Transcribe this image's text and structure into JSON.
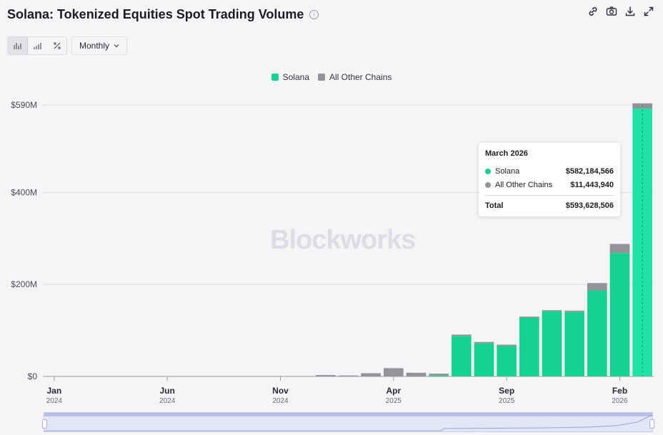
{
  "title": "Solana: Tokenized Equities Spot Trading Volume",
  "toolbar": {
    "period_label": "Monthly",
    "icons": [
      "link-icon",
      "camera-icon",
      "download-icon",
      "expand-icon"
    ]
  },
  "watermark": "Blockworks",
  "colors": {
    "solana": "#14d390",
    "solana_highlight": "#1fe3a5",
    "other": "#939398",
    "grid": "#e0dee3"
  },
  "tooltip": {
    "title": "March 2026",
    "rows": [
      {
        "name": "Solana",
        "value": "$582,184,566",
        "color": "#14d390"
      },
      {
        "name": "All Other Chains",
        "value": "$11,443,940",
        "color": "#939398"
      }
    ],
    "total_label": "Total",
    "total_value": "$593,628,506"
  },
  "chart_data": {
    "type": "bar",
    "stacked": true,
    "y_ticks": [
      {
        "value": 0,
        "label": "$0"
      },
      {
        "value": 200,
        "label": "$200M"
      },
      {
        "value": 400,
        "label": "$400M"
      },
      {
        "value": 590,
        "label": "$590M"
      }
    ],
    "x_ticks": [
      {
        "month": "Jan",
        "year": "2024"
      },
      {
        "month": "Jun",
        "year": "2024"
      },
      {
        "month": "Nov",
        "year": "2024"
      },
      {
        "month": "Apr",
        "year": "2025"
      },
      {
        "month": "Sep",
        "year": "2025"
      },
      {
        "month": "Feb",
        "year": "2026"
      }
    ],
    "ylim": [
      0,
      590
    ],
    "unit": "USD millions",
    "legend_position": "top-center",
    "grid": true,
    "categories": [
      "2024-01",
      "2024-02",
      "2024-03",
      "2024-04",
      "2024-05",
      "2024-06",
      "2024-07",
      "2024-08",
      "2024-09",
      "2024-10",
      "2024-11",
      "2024-12",
      "2025-01",
      "2025-02",
      "2025-03",
      "2025-04",
      "2025-05",
      "2025-06",
      "2025-07",
      "2025-08",
      "2025-09",
      "2025-10",
      "2025-11",
      "2025-12",
      "2026-01",
      "2026-02",
      "2026-03"
    ],
    "series": [
      {
        "name": "Solana",
        "values": [
          0,
          0,
          0,
          0,
          0,
          0,
          0,
          0,
          0,
          0,
          0,
          0,
          0,
          0,
          0,
          0,
          0,
          2,
          88,
          72,
          66,
          128,
          142,
          140,
          187,
          268,
          582.18
        ]
      },
      {
        "name": "All Other Chains",
        "values": [
          0,
          0,
          0,
          0,
          0,
          0,
          0,
          0,
          0,
          0,
          0,
          0,
          3,
          2,
          7,
          18,
          8,
          4,
          3,
          3,
          3,
          2,
          2,
          3,
          16,
          20,
          11.44
        ]
      }
    ]
  }
}
